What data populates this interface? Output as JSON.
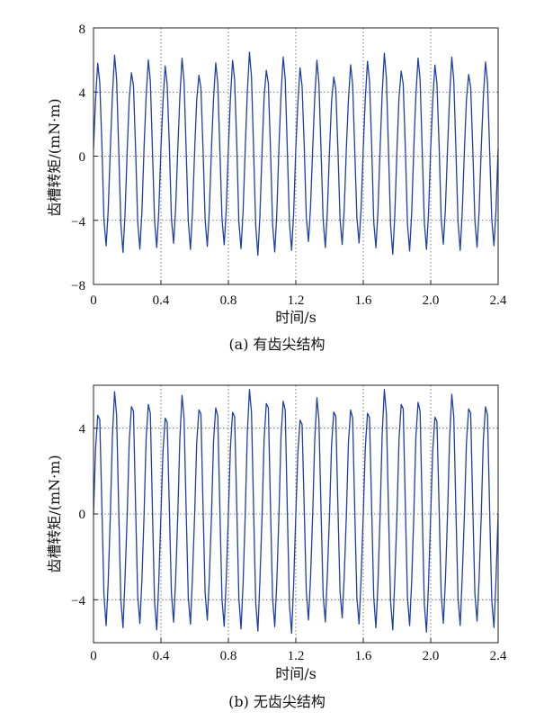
{
  "chart_data": [
    {
      "type": "line",
      "caption": "(a)  有齿尖结构",
      "xlabel": "时间/s",
      "ylabel": "齿槽转矩/(mN·m)",
      "xlim": [
        0,
        2.4
      ],
      "ylim": [
        -8,
        8
      ],
      "xticks": [
        "0",
        "0.4",
        "0.8",
        "1.2",
        "1.6",
        "2.0",
        "2.4"
      ],
      "yticks": [
        "−8",
        "−4",
        "0",
        "4",
        "8"
      ],
      "grid": "dotted",
      "line_color": "#1f3fa8",
      "period_s": 0.1,
      "amplitude": {
        "peak_min": 5.2,
        "peak_max": 6.4,
        "trough_min": -6.1,
        "trough_max": -5.5
      },
      "series": [
        {
          "x": [
            0.0,
            0.012,
            0.025,
            0.037,
            0.05,
            0.062,
            0.075,
            0.087,
            0.1,
            0.112,
            0.125,
            0.137,
            0.15,
            0.162,
            0.175,
            0.187,
            0.2,
            0.212,
            0.225,
            0.237,
            0.25,
            0.262,
            0.275,
            0.287,
            0.3,
            0.312,
            0.325,
            0.337,
            0.35,
            0.362,
            0.375,
            0.387,
            0.4
          ],
          "y": [
            0.5,
            3.5,
            5.8,
            4.6,
            0.6,
            -4.0,
            -5.6,
            -3.4,
            0.5,
            3.8,
            6.3,
            4.8,
            0.2,
            -4.2,
            -6.0,
            -3.6,
            0.4,
            3.6,
            5.2,
            4.4,
            0.3,
            -4.1,
            -5.8,
            -3.5,
            0.6,
            3.7,
            6.0,
            4.7,
            0.2,
            -4.0,
            -5.7,
            -3.5,
            0.5
          ]
        }
      ]
    },
    {
      "type": "line",
      "caption": "(b)  无齿尖结构",
      "xlabel": "时间/s",
      "ylabel": "齿槽转矩/(mN·m)",
      "xlim": [
        0,
        2.4
      ],
      "ylim": [
        -6,
        6
      ],
      "xticks": [
        "0",
        "0.4",
        "0.8",
        "1.2",
        "1.6",
        "2.0",
        "2.4"
      ],
      "yticks": [
        "−4",
        "0",
        "4"
      ],
      "grid": "dotted",
      "line_color": "#1f3fa8",
      "period_s": 0.1,
      "amplitude": {
        "peak_min": 4.6,
        "peak_max": 5.7,
        "trough_min": -5.4,
        "trough_max": -4.6
      },
      "series": [
        {
          "x": [
            0.0,
            0.012,
            0.025,
            0.037,
            0.05,
            0.062,
            0.075,
            0.087,
            0.1,
            0.112,
            0.125,
            0.137,
            0.15,
            0.162,
            0.175,
            0.187,
            0.2,
            0.212,
            0.225,
            0.237,
            0.25,
            0.262,
            0.275,
            0.287,
            0.3,
            0.312,
            0.325,
            0.337,
            0.35,
            0.362,
            0.375,
            0.387,
            0.4
          ],
          "y": [
            0.0,
            3.0,
            4.6,
            4.4,
            0.2,
            -3.8,
            -5.2,
            -3.2,
            0.0,
            3.6,
            5.7,
            4.6,
            0.0,
            -4.0,
            -5.3,
            -3.0,
            0.0,
            3.4,
            5.0,
            4.8,
            0.2,
            -3.8,
            -5.1,
            -3.1,
            0.0,
            3.5,
            5.1,
            4.7,
            0.0,
            -4.1,
            -5.4,
            -3.2,
            0.0
          ]
        }
      ]
    }
  ]
}
